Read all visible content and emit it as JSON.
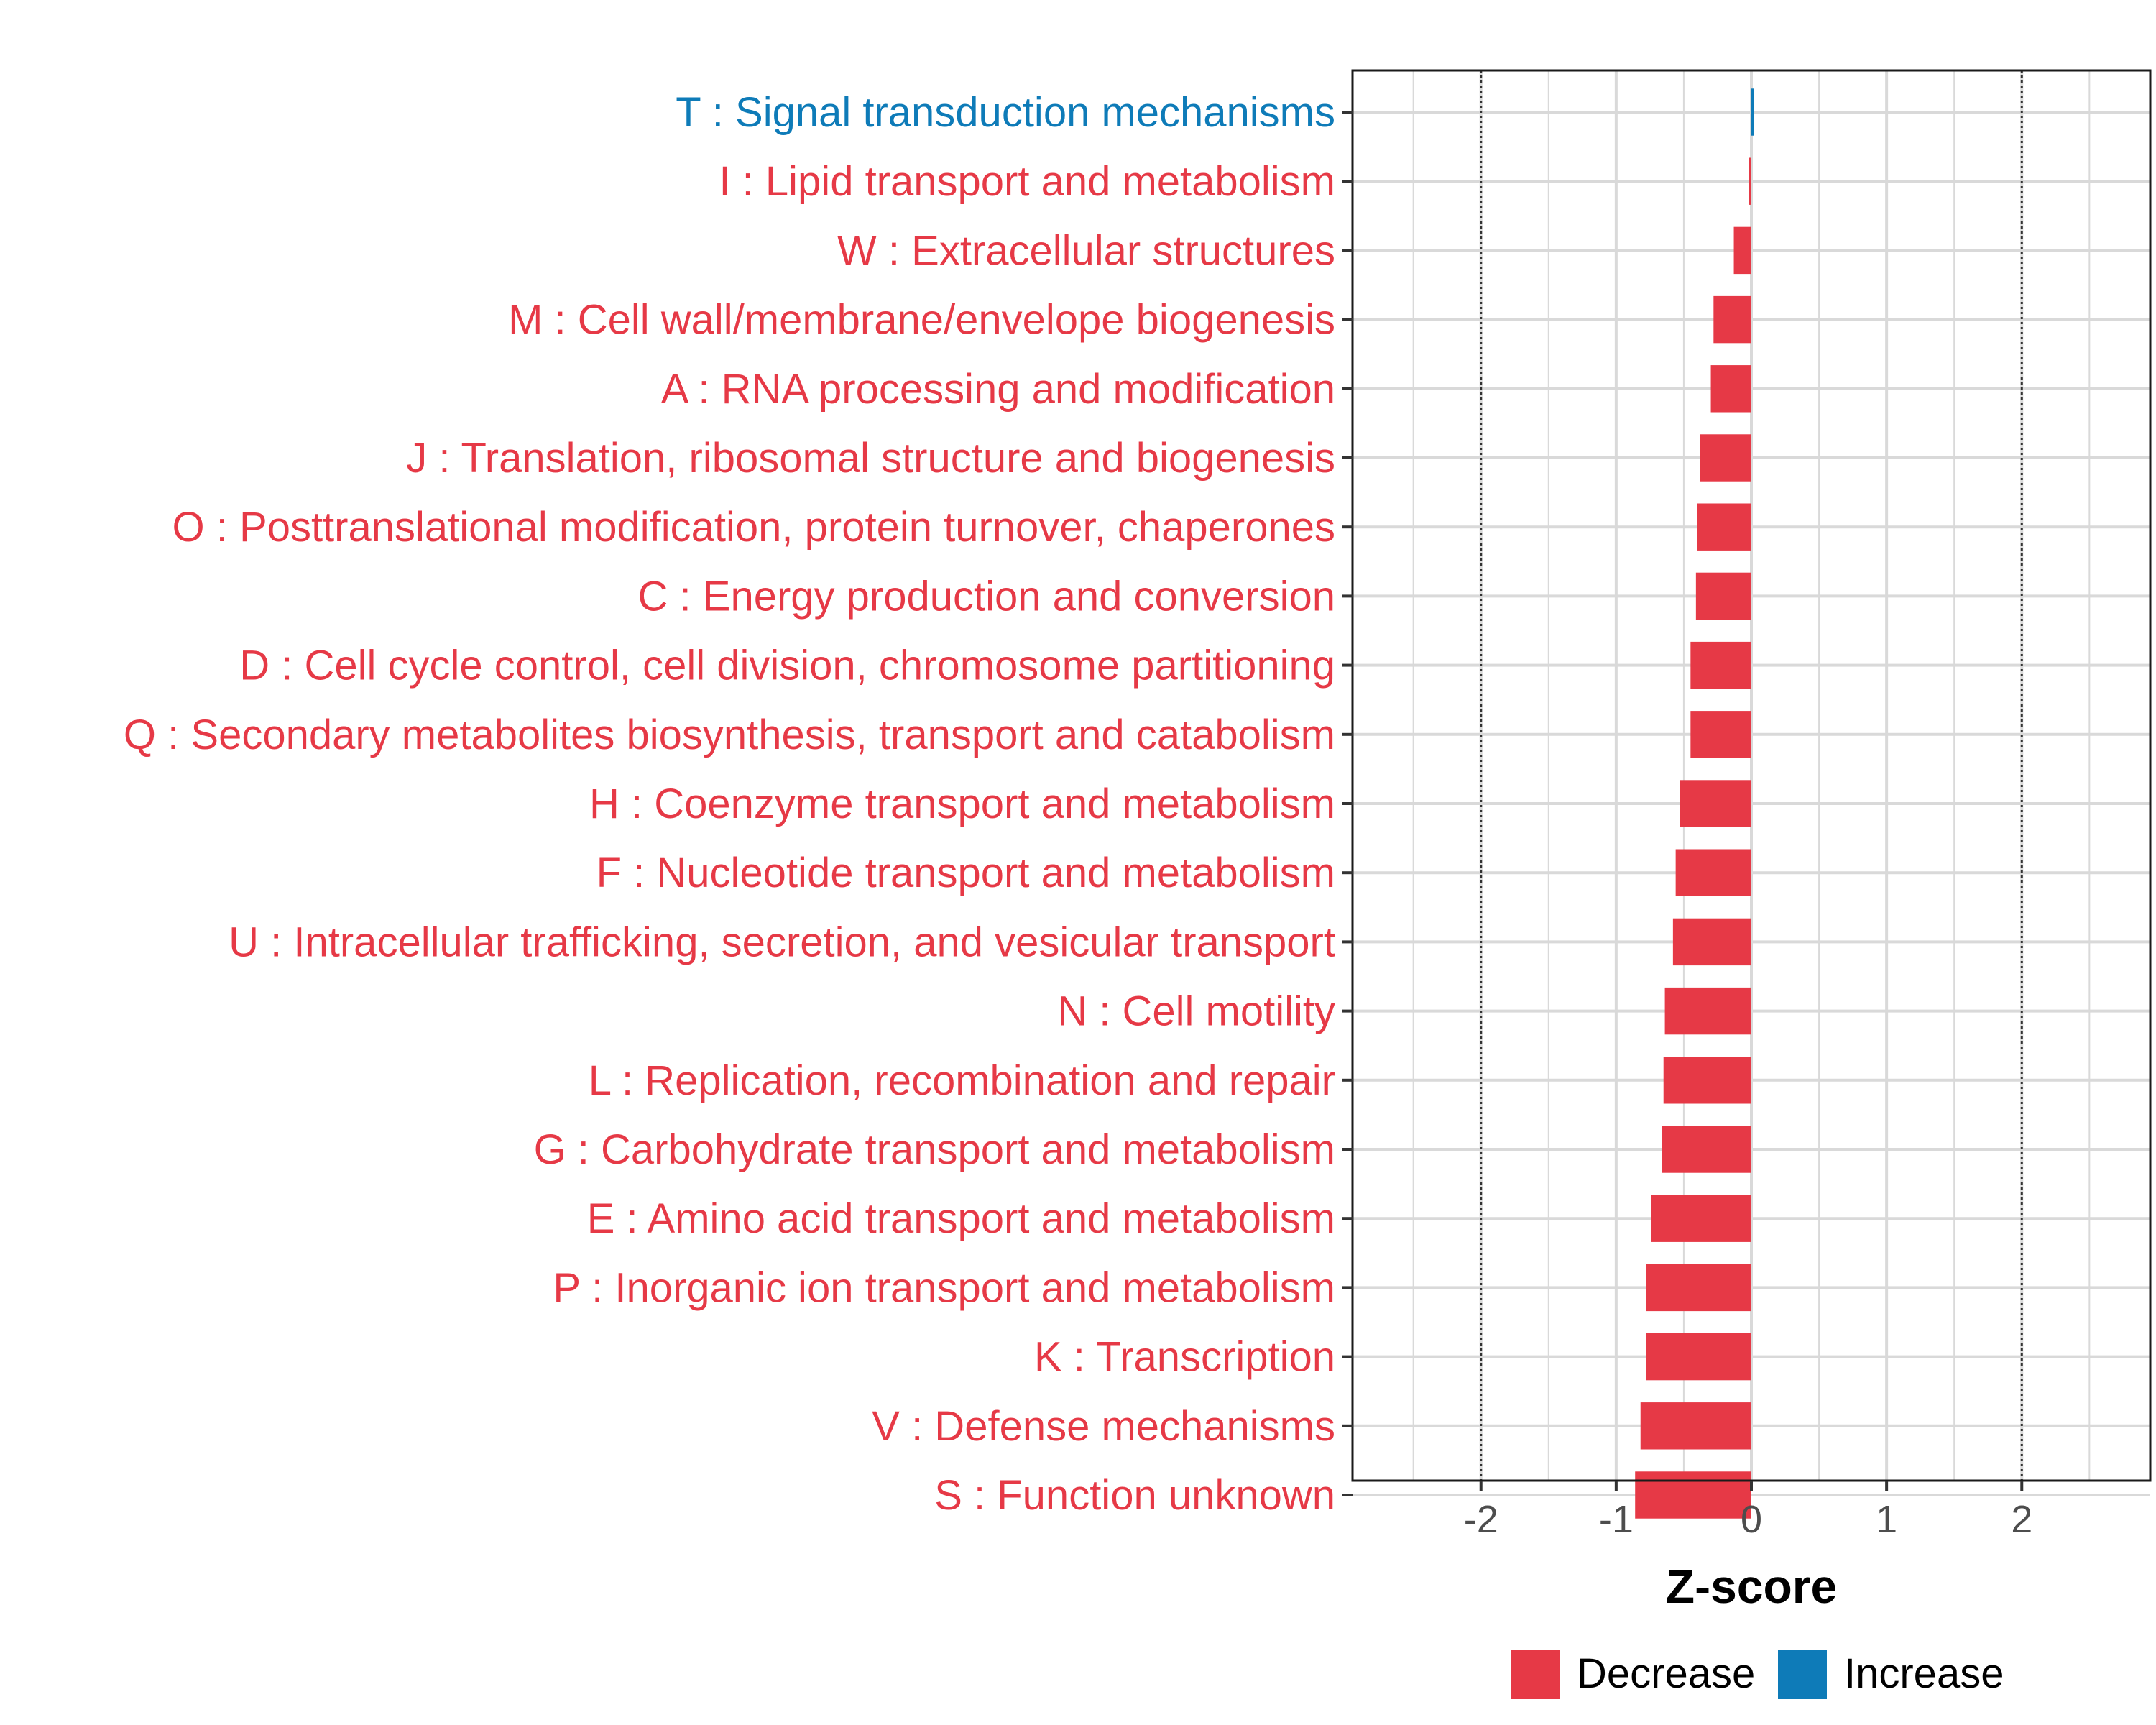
{
  "chart_data": {
    "type": "bar",
    "orientation": "horizontal",
    "xlabel": "Z-score",
    "xlim": [
      -2.95,
      2.95
    ],
    "x_ticks": [
      -2,
      -1,
      0,
      1,
      2
    ],
    "x_tick_labels": [
      "-2",
      "-1",
      "0",
      "1",
      "2"
    ],
    "reference_lines": [
      -2,
      2
    ],
    "grid": true,
    "legend_position": "bottom",
    "colors": {
      "Decrease": "#e63946",
      "Increase": "#0e7bb8"
    },
    "legend": [
      {
        "label": "Decrease",
        "color": "#e63946"
      },
      {
        "label": "Increase",
        "color": "#0e7bb8"
      }
    ],
    "categories": [
      "T : Signal transduction mechanisms",
      "I : Lipid transport and metabolism",
      "W : Extracellular structures",
      "M : Cell wall/membrane/envelope biogenesis",
      "A : RNA processing and modification",
      "J : Translation, ribosomal structure and biogenesis",
      "O : Posttranslational modification, protein turnover, chaperones",
      "C : Energy production and conversion",
      "D : Cell cycle control, cell division, chromosome partitioning",
      "Q : Secondary metabolites biosynthesis, transport and catabolism",
      "H : Coenzyme transport and metabolism",
      "F : Nucleotide transport and metabolism",
      "U : Intracellular trafficking, secretion, and vesicular transport",
      "N : Cell motility",
      "L : Replication, recombination and repair",
      "G : Carbohydrate transport and metabolism",
      "E : Amino acid transport and metabolism",
      "P : Inorganic ion transport and metabolism",
      "K : Transcription",
      "V : Defense mechanisms",
      "S : Function unknown"
    ],
    "values": [
      0.01,
      -0.01,
      -0.13,
      -0.28,
      -0.3,
      -0.38,
      -0.4,
      -0.41,
      -0.45,
      -0.45,
      -0.53,
      -0.56,
      -0.58,
      -0.64,
      -0.65,
      -0.66,
      -0.74,
      -0.78,
      -0.78,
      -0.82,
      -0.86
    ],
    "direction": [
      "Increase",
      "Decrease",
      "Decrease",
      "Decrease",
      "Decrease",
      "Decrease",
      "Decrease",
      "Decrease",
      "Decrease",
      "Decrease",
      "Decrease",
      "Decrease",
      "Decrease",
      "Decrease",
      "Decrease",
      "Decrease",
      "Decrease",
      "Decrease",
      "Decrease",
      "Decrease",
      "Decrease"
    ]
  }
}
